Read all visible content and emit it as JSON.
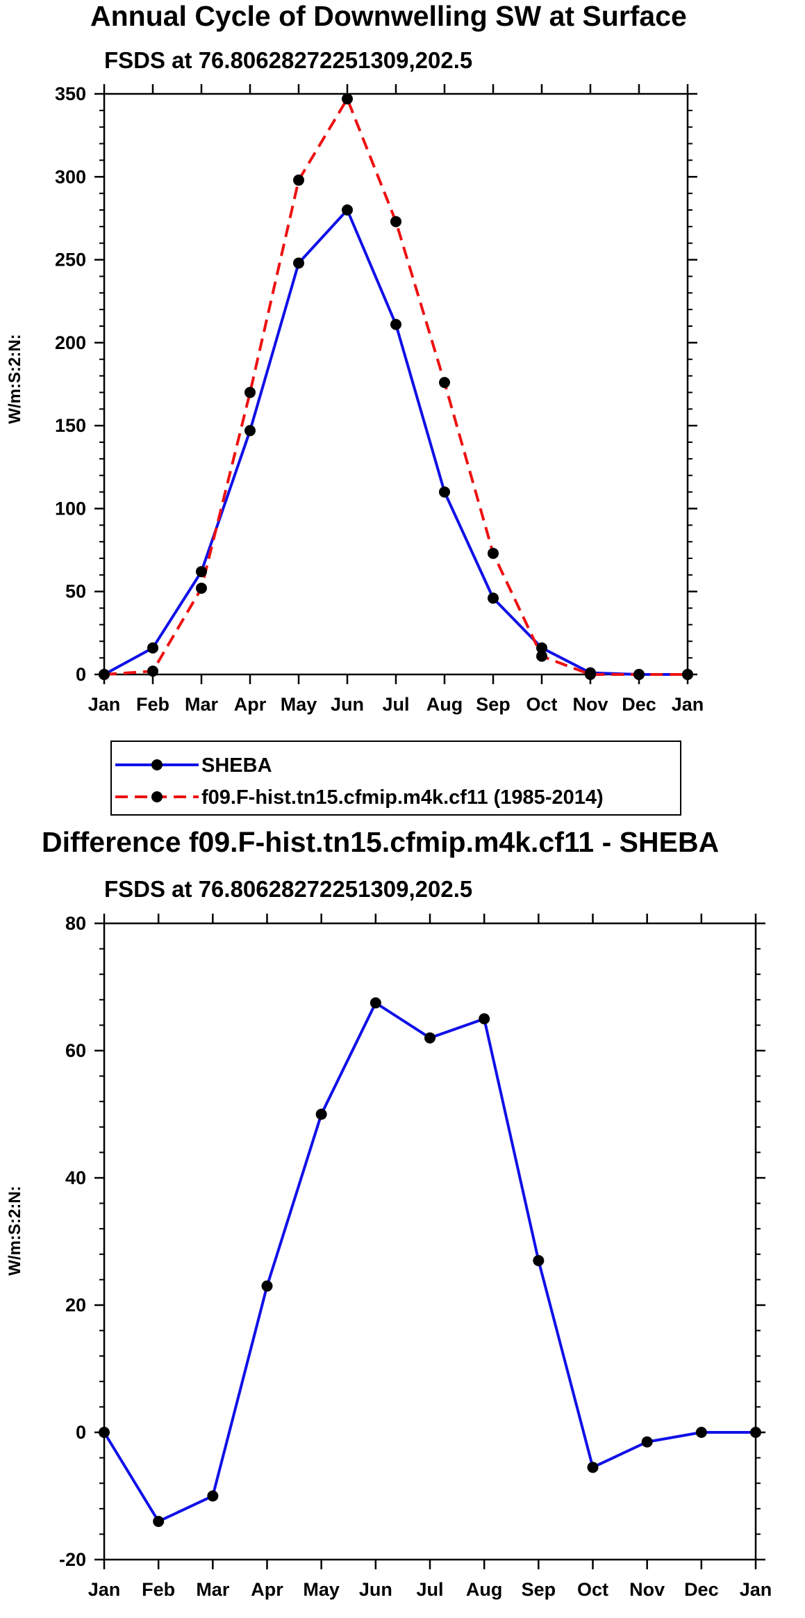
{
  "months": [
    "Jan",
    "Feb",
    "Mar",
    "Apr",
    "May",
    "Jun",
    "Jul",
    "Aug",
    "Sep",
    "Oct",
    "Nov",
    "Dec",
    "Jan"
  ],
  "colors": {
    "sheba": "#1010e8",
    "model": "#ee1111",
    "marker": "#000000",
    "axis": "#000000"
  },
  "chart_data": [
    {
      "type": "line",
      "title": "Annual Cycle of Downwelling SW at Surface",
      "subtitle": "FSDS at 76.80628272251309,202.5",
      "ylabel": "W/m:S:2:N:",
      "xlabel": "",
      "ylim": [
        0,
        350
      ],
      "yticks": [
        0,
        50,
        100,
        150,
        200,
        250,
        300,
        350
      ],
      "categories": [
        "Jan",
        "Feb",
        "Mar",
        "Apr",
        "May",
        "Jun",
        "Jul",
        "Aug",
        "Sep",
        "Oct",
        "Nov",
        "Dec",
        "Jan"
      ],
      "legend": "below",
      "series": [
        {
          "name": "SHEBA",
          "style": "solid",
          "values": [
            0,
            16,
            62,
            147,
            248,
            280,
            211,
            110,
            46,
            16,
            1,
            0,
            0
          ]
        },
        {
          "name": "f09.F-hist.tn15.cfmip.m4k.cf11 (1985-2014)",
          "style": "dashed",
          "values": [
            0,
            2,
            52,
            170,
            298,
            347,
            273,
            176,
            73,
            11,
            0,
            0,
            0
          ]
        }
      ]
    },
    {
      "type": "line",
      "title": "Difference f09.F-hist.tn15.cfmip.m4k.cf11 - SHEBA",
      "subtitle": "FSDS at 76.80628272251309,202.5",
      "ylabel": "W/m:S:2:N:",
      "xlabel": "",
      "ylim": [
        -20,
        80
      ],
      "yticks": [
        -20,
        0,
        20,
        40,
        60,
        80
      ],
      "categories": [
        "Jan",
        "Feb",
        "Mar",
        "Apr",
        "May",
        "Jun",
        "Jul",
        "Aug",
        "Sep",
        "Oct",
        "Nov",
        "Dec",
        "Jan"
      ],
      "series": [
        {
          "name": "Difference",
          "style": "solid",
          "values": [
            0,
            -14,
            -10,
            23,
            50,
            67.5,
            62,
            65,
            27,
            -5.5,
            -1.5,
            0,
            0
          ]
        }
      ]
    }
  ]
}
